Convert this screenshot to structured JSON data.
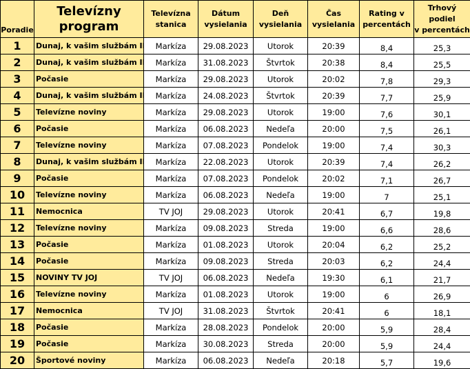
{
  "headers": {
    "rank": "Poradie",
    "program_line1": "Televízny",
    "program_line2": "program",
    "station_line1": "Televízna",
    "station_line2": "stanica",
    "date_line1": "Dátum",
    "date_line2": "vysielania",
    "day_line1": "Deň",
    "day_line2": "vysielania",
    "time_line1": "Čas",
    "time_line2": "vysielania",
    "rating_line1": "Rating v",
    "rating_line2": "percentách",
    "share_line1": "Trhový podiel",
    "share_line2": "v percentách"
  },
  "rows": [
    {
      "rank": "1",
      "program": "Dunaj, k vašim službám III.",
      "station": "Markíza",
      "date": "29.08.2023",
      "day": "Utorok",
      "time": "20:39",
      "rating": "8,4",
      "share": "25,3"
    },
    {
      "rank": "2",
      "program": "Dunaj, k vašim službám III.",
      "station": "Markíza",
      "date": "31.08.2023",
      "day": "Štvrtok",
      "time": "20:38",
      "rating": "8,4",
      "share": "25,5"
    },
    {
      "rank": "3",
      "program": "Počasie",
      "station": "Markíza",
      "date": "29.08.2023",
      "day": "Utorok",
      "time": "20:02",
      "rating": "7,8",
      "share": "29,3"
    },
    {
      "rank": "4",
      "program": "Dunaj, k vašim službám III.",
      "station": "Markíza",
      "date": "24.08.2023",
      "day": "Štvrtok",
      "time": "20:39",
      "rating": "7,7",
      "share": "25,9"
    },
    {
      "rank": "5",
      "program": "Televízne noviny",
      "station": "Markíza",
      "date": "29.08.2023",
      "day": "Utorok",
      "time": "19:00",
      "rating": "7,6",
      "share": "30,1"
    },
    {
      "rank": "6",
      "program": "Počasie",
      "station": "Markíza",
      "date": "06.08.2023",
      "day": "Nedeľa",
      "time": "20:00",
      "rating": "7,5",
      "share": "26,1"
    },
    {
      "rank": "7",
      "program": "Televízne noviny",
      "station": "Markíza",
      "date": "07.08.2023",
      "day": "Pondelok",
      "time": "19:00",
      "rating": "7,4",
      "share": "30,3"
    },
    {
      "rank": "8",
      "program": "Dunaj, k vašim službám III.",
      "station": "Markíza",
      "date": "22.08.2023",
      "day": "Utorok",
      "time": "20:39",
      "rating": "7,4",
      "share": "26,2"
    },
    {
      "rank": "9",
      "program": "Počasie",
      "station": "Markíza",
      "date": "07.08.2023",
      "day": "Pondelok",
      "time": "20:02",
      "rating": "7,1",
      "share": "26,7"
    },
    {
      "rank": "10",
      "program": "Televízne noviny",
      "station": "Markíza",
      "date": "06.08.2023",
      "day": "Nedeľa",
      "time": "19:00",
      "rating": "7",
      "share": "25,1"
    },
    {
      "rank": "11",
      "program": "Nemocnica",
      "station": "TV JOJ",
      "date": "29.08.2023",
      "day": "Utorok",
      "time": "20:41",
      "rating": "6,7",
      "share": "19,8"
    },
    {
      "rank": "12",
      "program": "Televízne noviny",
      "station": "Markíza",
      "date": "09.08.2023",
      "day": "Streda",
      "time": "19:00",
      "rating": "6,6",
      "share": "28,6"
    },
    {
      "rank": "13",
      "program": "Počasie",
      "station": "Markíza",
      "date": "01.08.2023",
      "day": "Utorok",
      "time": "20:04",
      "rating": "6,2",
      "share": "25,2"
    },
    {
      "rank": "14",
      "program": "Počasie",
      "station": "Markíza",
      "date": "09.08.2023",
      "day": "Streda",
      "time": "20:03",
      "rating": "6,2",
      "share": "24,4"
    },
    {
      "rank": "15",
      "program": "NOVINY TV JOJ",
      "station": "TV JOJ",
      "date": "06.08.2023",
      "day": "Nedeľa",
      "time": "19:30",
      "rating": "6,1",
      "share": "21,7"
    },
    {
      "rank": "16",
      "program": "Televízne noviny",
      "station": "Markíza",
      "date": "01.08.2023",
      "day": "Utorok",
      "time": "19:00",
      "rating": "6",
      "share": "26,9"
    },
    {
      "rank": "17",
      "program": "Nemocnica",
      "station": "TV JOJ",
      "date": "31.08.2023",
      "day": "Štvrtok",
      "time": "20:41",
      "rating": "6",
      "share": "18,1"
    },
    {
      "rank": "18",
      "program": "Počasie",
      "station": "Markíza",
      "date": "28.08.2023",
      "day": "Pondelok",
      "time": "20:00",
      "rating": "5,9",
      "share": "28,4"
    },
    {
      "rank": "19",
      "program": "Počasie",
      "station": "Markíza",
      "date": "30.08.2023",
      "day": "Streda",
      "time": "20:00",
      "rating": "5,9",
      "share": "24,4"
    },
    {
      "rank": "20",
      "program": "Športové noviny",
      "station": "Markíza",
      "date": "06.08.2023",
      "day": "Nedeľa",
      "time": "20:18",
      "rating": "5,7",
      "share": "19,6"
    }
  ]
}
